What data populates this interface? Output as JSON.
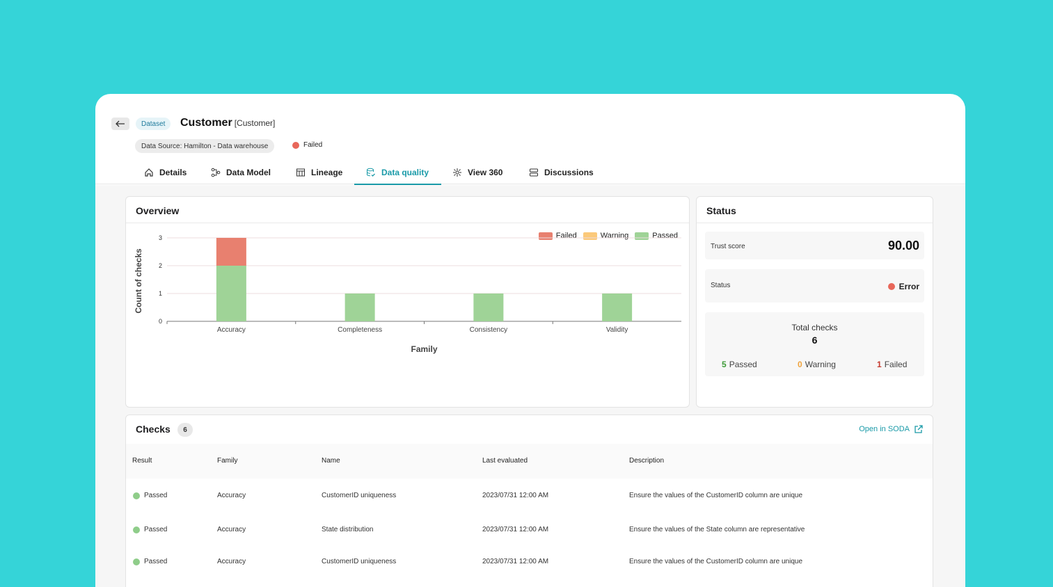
{
  "header": {
    "back_icon": "arrow-left-icon",
    "badge": "Dataset",
    "title": "Customer",
    "title_sub": "[Customer]",
    "source": "Data Source: Hamilton - Data warehouse",
    "status": "Failed",
    "status_color": "#e8675a"
  },
  "tabs": [
    {
      "label": "Details",
      "icon": "home-icon"
    },
    {
      "label": "Data Model",
      "icon": "data-model-icon"
    },
    {
      "label": "Lineage",
      "icon": "lineage-icon"
    },
    {
      "label": "Data quality",
      "icon": "database-check-icon",
      "active": true
    },
    {
      "label": "View 360",
      "icon": "view-360-icon"
    },
    {
      "label": "Discussions",
      "icon": "discussions-icon"
    }
  ],
  "overview": {
    "title": "Overview",
    "legend": [
      {
        "label": "Failed",
        "color": "#e8806f"
      },
      {
        "label": "Warning",
        "color": "#fbc97a"
      },
      {
        "label": "Passed",
        "color": "#9fd397"
      }
    ]
  },
  "chart_data": {
    "type": "bar",
    "stacked": true,
    "categories": [
      "Accuracy",
      "Completeness",
      "Consistency",
      "Validity"
    ],
    "series": [
      {
        "name": "Passed",
        "values": [
          2,
          1,
          1,
          1
        ],
        "color": "#9fd397"
      },
      {
        "name": "Warning",
        "values": [
          0,
          0,
          0,
          0
        ],
        "color": "#fbc97a"
      },
      {
        "name": "Failed",
        "values": [
          1,
          0,
          0,
          0
        ],
        "color": "#e8806f"
      }
    ],
    "xlabel": "Family",
    "ylabel": "Count of checks",
    "ylim": [
      0,
      3
    ],
    "yticks": [
      0,
      1,
      2,
      3
    ],
    "grid": true,
    "legend_position": "top-right"
  },
  "status": {
    "title": "Status",
    "trust_label": "Trust score",
    "trust_value": "90.00",
    "status_label": "Status",
    "status_value": "Error",
    "total_label": "Total checks",
    "total_value": "6",
    "passed_count": "5",
    "passed_label": "Passed",
    "warning_count": "0",
    "warning_label": "Warning",
    "failed_count": "1",
    "failed_label": "Failed"
  },
  "checks": {
    "title": "Checks",
    "count": "6",
    "open_link": "Open in SODA",
    "columns": [
      "Result",
      "Family",
      "Name",
      "Last evaluated",
      "Description"
    ],
    "rows": [
      {
        "result": "Passed",
        "family": "Accuracy",
        "name": "CustomerID uniqueness",
        "last": "2023/07/31 12:00 AM",
        "desc": "Ensure the values of the CustomerID column are unique"
      },
      {
        "result": "Passed",
        "family": "Accuracy",
        "name": "State distribution",
        "last": "2023/07/31 12:00 AM",
        "desc": "Ensure the values of the State column are representative"
      },
      {
        "result": "Passed",
        "family": "Accuracy",
        "name": "CustomerID uniqueness",
        "last": "2023/07/31 12:00 AM",
        "desc": "Ensure the values of the CustomerID column are unique"
      }
    ]
  }
}
